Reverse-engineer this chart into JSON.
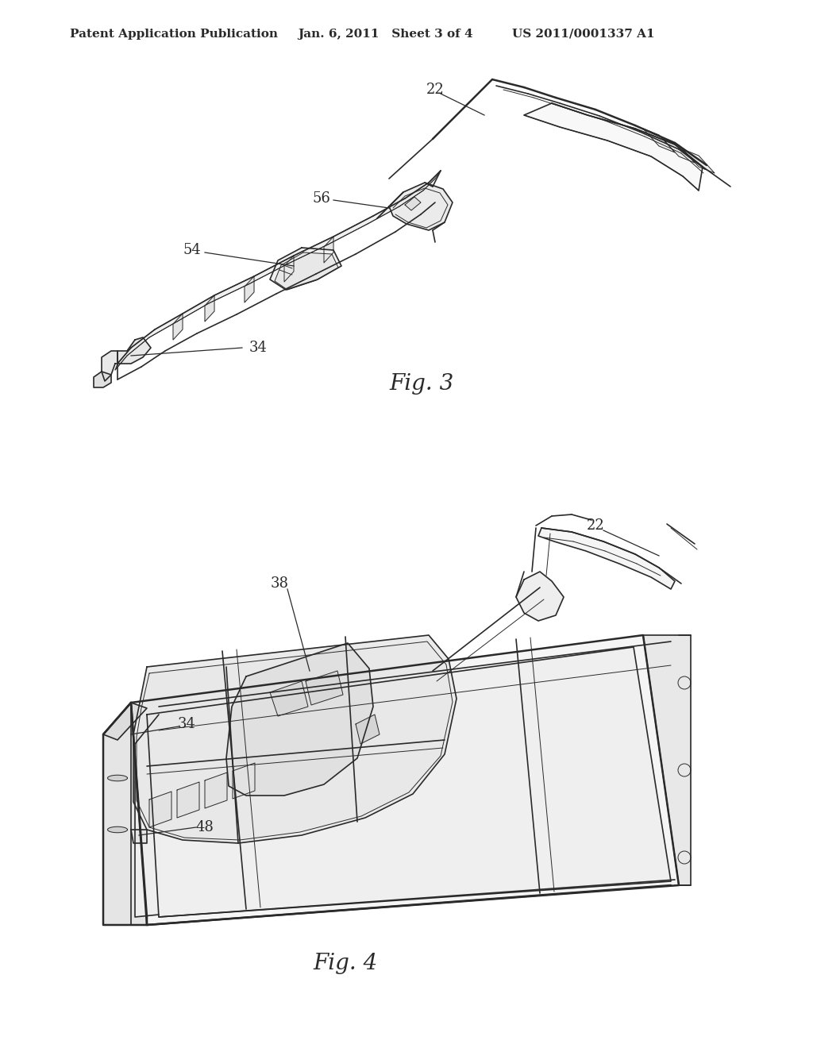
{
  "background_color": "#ffffff",
  "line_color": "#2a2a2a",
  "header_left": "Patent Application Publication",
  "header_center": "Jan. 6, 2011   Sheet 3 of 4",
  "header_right": "US 2011/0001337 A1",
  "fig3_label": "Fig. 3",
  "fig4_label": "Fig. 4",
  "header_fontsize": 11,
  "annotation_fontsize": 13,
  "fig_label_fontsize": 20
}
